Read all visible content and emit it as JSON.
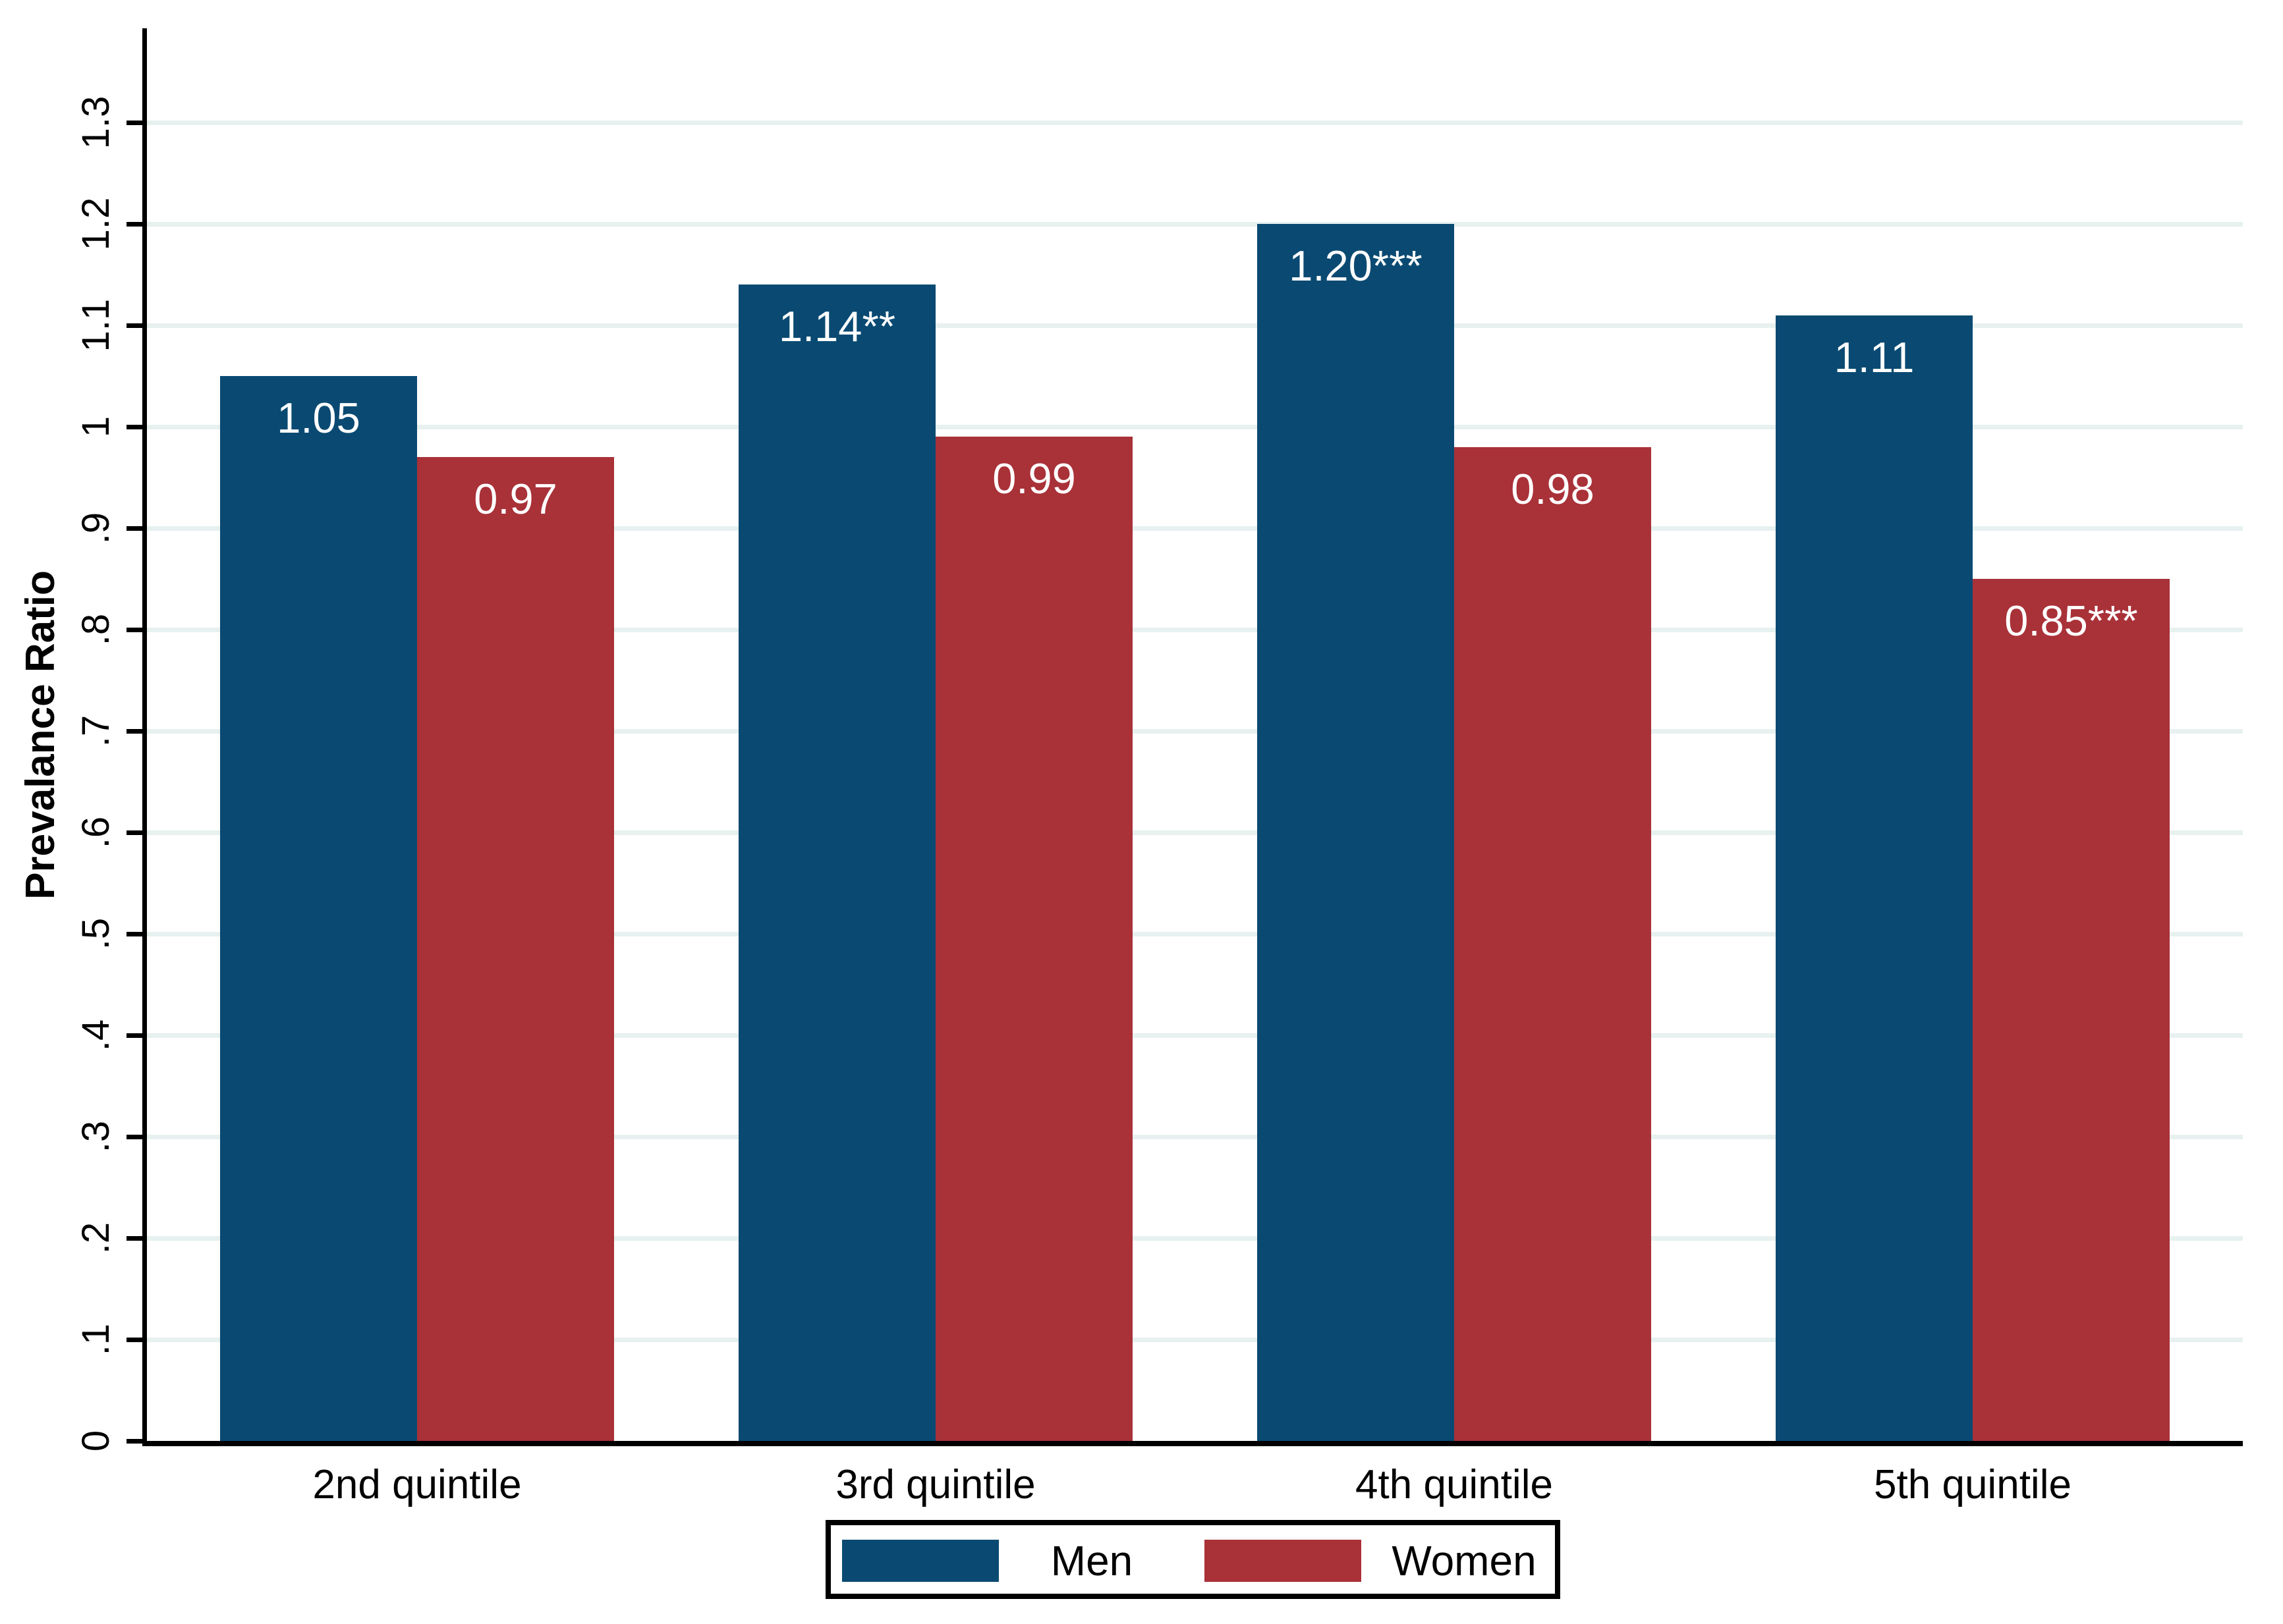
{
  "chart_data": {
    "type": "bar",
    "title": "",
    "xlabel": "",
    "ylabel": "Prevalance Ratio",
    "categories": [
      "2nd quintile",
      "3rd quintile",
      "4th quintile",
      "5th quintile"
    ],
    "series": [
      {
        "name": "Men",
        "color": "#0a4a72",
        "values": [
          1.05,
          1.14,
          1.2,
          1.11
        ],
        "labels": [
          "1.05",
          "1.14**",
          "1.20***",
          "1.11"
        ]
      },
      {
        "name": "Women",
        "color": "#a93138",
        "values": [
          0.97,
          0.99,
          0.98,
          0.85
        ],
        "labels": [
          "0.97",
          "0.99",
          "0.98",
          "0.85***"
        ]
      }
    ],
    "ylim": [
      0,
      1.3
    ],
    "ytick_step": 0.1,
    "ytick_labels": [
      "0",
      ".1",
      ".2",
      ".3",
      ".4",
      ".5",
      ".6",
      ".7",
      ".8",
      ".9",
      "1",
      "1.1",
      "1.2",
      "1.3"
    ],
    "grid": true,
    "grid_color": "#e6f1f0",
    "axis_color": "#000000",
    "value_label_color": "#ffffff",
    "legend_position": "bottom",
    "significance_note_markers": [
      "**",
      "***"
    ]
  }
}
